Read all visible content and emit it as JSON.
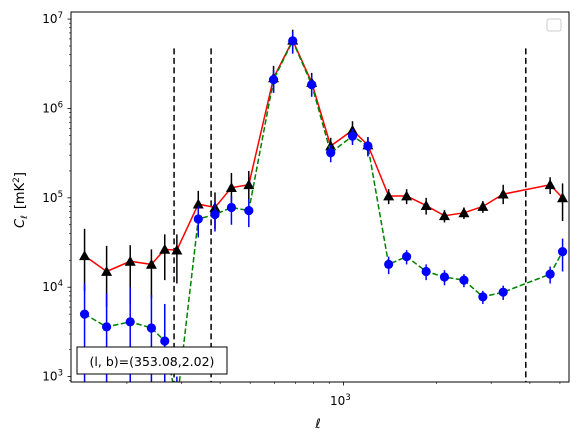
{
  "chart_data": {
    "type": "line",
    "xscale": "log",
    "yscale": "log",
    "xlim": [
      132,
      5350
    ],
    "ylim": [
      870,
      12000000
    ],
    "xlabel": "ℓ",
    "ylabel": "C",
    "ylabel_subscript": "ℓ",
    "ylabel_unit_open": "[mK",
    "ylabel_unit_sup": "2",
    "ylabel_unit_close": "]",
    "x_tick_major": [
      {
        "value": 1000,
        "base": "10",
        "exp": "3"
      }
    ],
    "y_ticks": [
      {
        "value": 1000,
        "base": "10",
        "exp": "3"
      },
      {
        "value": 10000,
        "base": "10",
        "exp": "4"
      },
      {
        "value": 100000,
        "base": "10",
        "exp": "5"
      },
      {
        "value": 1000000,
        "base": "10",
        "exp": "6"
      },
      {
        "value": 10000000,
        "base": "10",
        "exp": "7"
      }
    ],
    "annotation": "(l, b)=(353.08,2.02)",
    "vlines": [
      284,
      374,
      3880
    ],
    "legend": "top-right",
    "series": [
      {
        "marker": "triangle",
        "marker_color": "#000000",
        "line_color": "#ff0000",
        "line_style": "solid",
        "x": [
          146,
          172,
          205,
          240,
          265,
          290,
          340,
          385,
          435,
          495,
          595,
          686,
          790,
          910,
          1070,
          1200,
          1400,
          1600,
          1850,
          2120,
          2450,
          2820,
          3280,
          4650,
          5100
        ],
        "y": [
          22500,
          15000,
          19500,
          18000,
          26500,
          26000,
          85000,
          78000,
          130000,
          140000,
          2200000,
          5800000,
          1950000,
          380000,
          570000,
          390000,
          105000,
          105000,
          82000,
          63000,
          68000,
          80000,
          110000,
          140000,
          100000
        ],
        "y_lo": [
          9000,
          6000,
          6500,
          7500,
          12000,
          11000,
          55000,
          45000,
          80000,
          95000,
          1500000,
          4200000,
          1400000,
          280000,
          420000,
          300000,
          85000,
          85000,
          65000,
          53000,
          58000,
          68000,
          85000,
          110000,
          55000
        ],
        "y_hi": [
          45000,
          29000,
          29500,
          26500,
          39000,
          39000,
          120000,
          115000,
          190000,
          200000,
          3000000,
          7600000,
          2500000,
          470000,
          720000,
          480000,
          125000,
          125000,
          100000,
          73000,
          78000,
          92000,
          140000,
          170000,
          145000
        ]
      },
      {
        "marker": "circle",
        "marker_color": "#0000ff",
        "line_color": "#008000",
        "line_style": "dashed",
        "x": [
          146,
          172,
          205,
          240,
          265,
          290,
          340,
          385,
          435,
          495,
          595,
          686,
          790,
          910,
          1070,
          1200,
          1400,
          1600,
          1850,
          2120,
          2450,
          2820,
          3280,
          4650,
          5100
        ],
        "y": [
          5000,
          3600,
          4100,
          3500,
          2500,
          500,
          58000,
          65000,
          78000,
          72000,
          2100000,
          5700000,
          1850000,
          320000,
          490000,
          380000,
          18000,
          22000,
          15000,
          13000,
          12000,
          7800,
          8800,
          14000,
          25000
        ],
        "y_lo": [
          500,
          500,
          500,
          500,
          500,
          300,
          36000,
          42000,
          50000,
          47000,
          1500000,
          4100000,
          1350000,
          250000,
          390000,
          290000,
          14000,
          18000,
          12000,
          10500,
          10000,
          6500,
          7200,
          11000,
          15000
        ],
        "y_hi": [
          11000,
          8500,
          10000,
          8200,
          6500,
          1000,
          80000,
          90000,
          105000,
          97000,
          2700000,
          7300000,
          2350000,
          390000,
          590000,
          470000,
          22000,
          26000,
          18000,
          15500,
          14000,
          9100,
          10400,
          17000,
          35000
        ]
      }
    ]
  }
}
